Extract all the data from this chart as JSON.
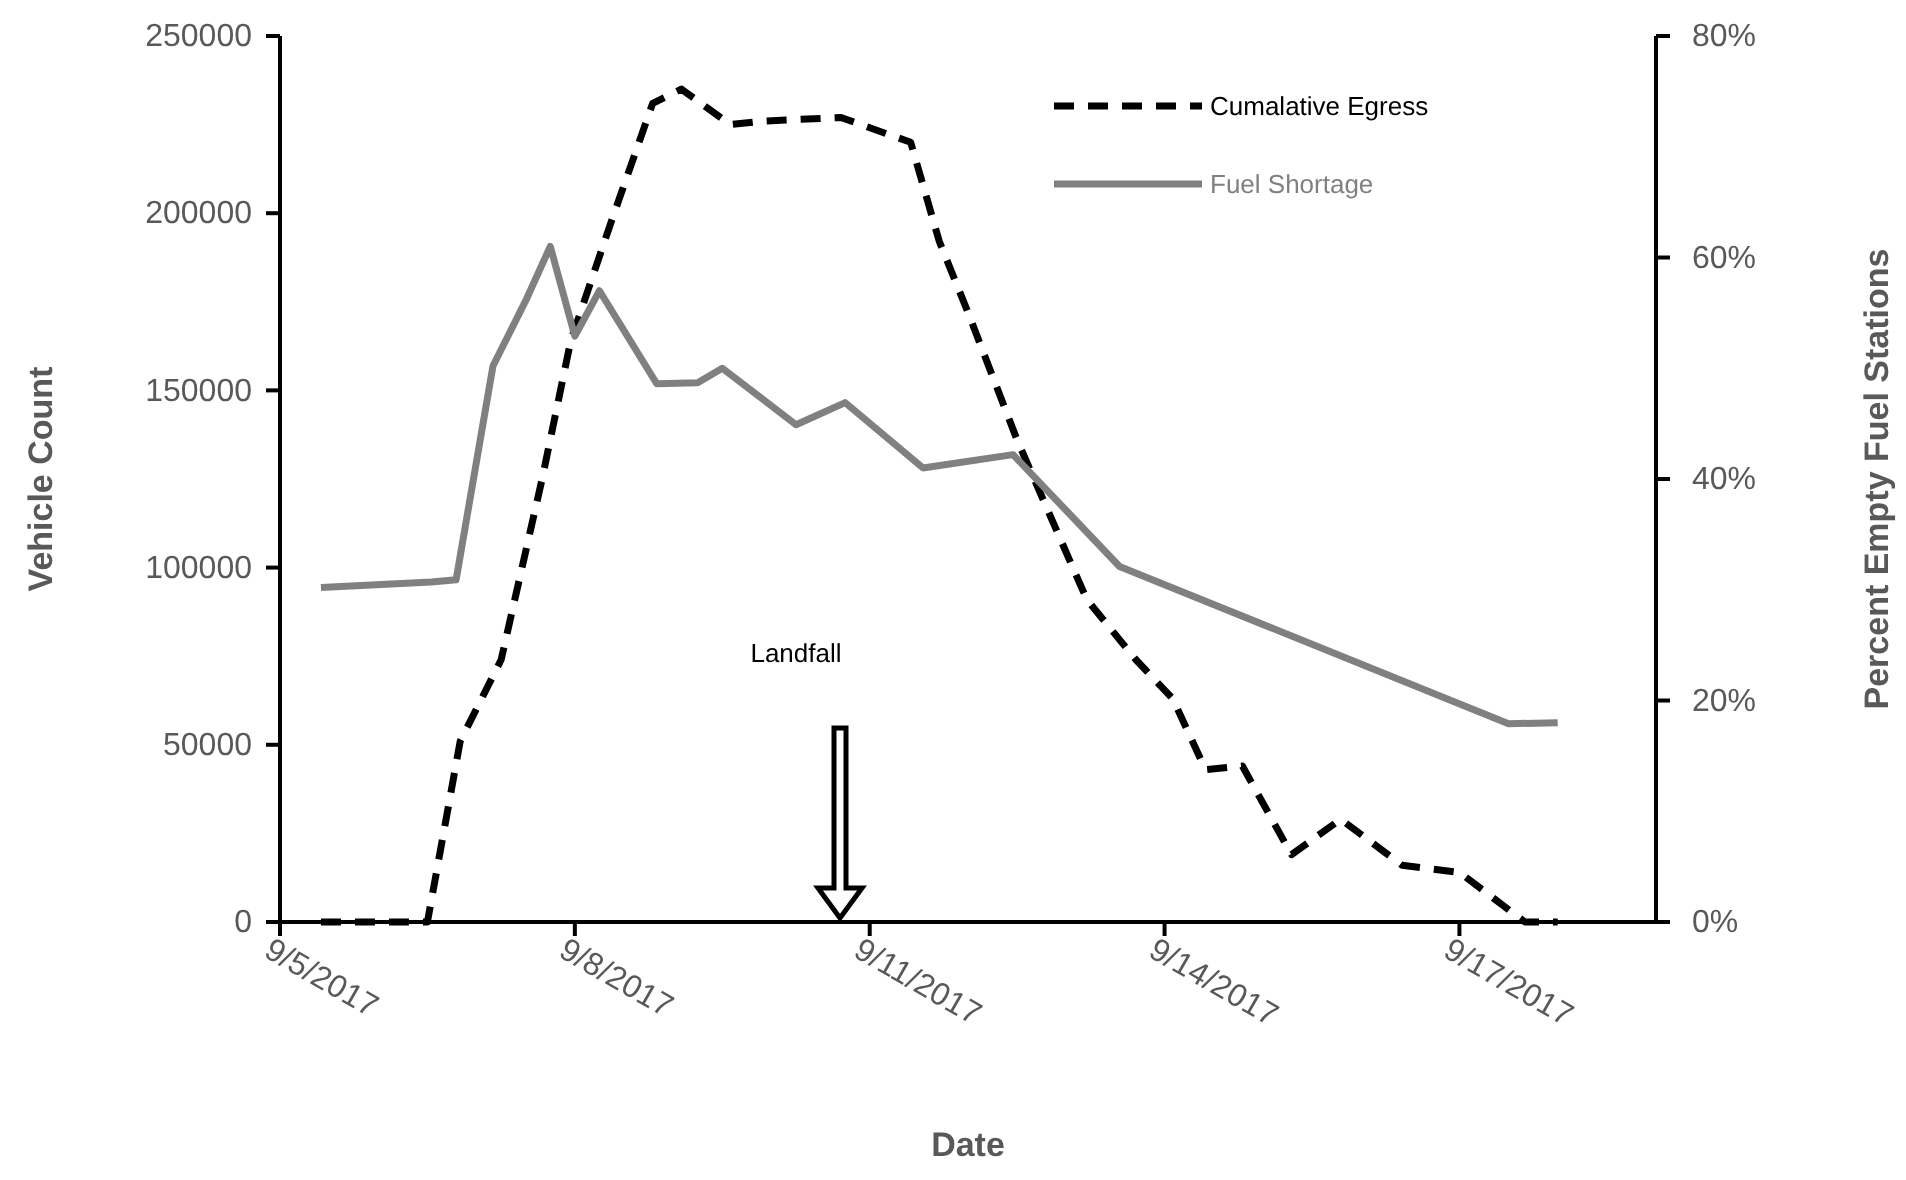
{
  "chart_data": {
    "type": "line",
    "xlabel": "Date",
    "ylabel": "Vehicle Count",
    "y2label": "Percent Empty Fuel Stations",
    "xlim": [
      "2017-09-05",
      "2017-09-19"
    ],
    "xticks": [
      {
        "value": "2017-09-05",
        "label": "9/5/2017"
      },
      {
        "value": "2017-09-08",
        "label": "9/8/2017"
      },
      {
        "value": "2017-09-11",
        "label": "9/11/2017"
      },
      {
        "value": "2017-09-14",
        "label": "9/14/2017"
      },
      {
        "value": "2017-09-17",
        "label": "9/17/2017"
      }
    ],
    "ylim": [
      0,
      250000
    ],
    "yticks": [
      0,
      50000,
      100000,
      150000,
      200000,
      250000
    ],
    "y2lim": [
      0,
      80
    ],
    "y2ticks": [
      {
        "value": 0,
        "label": "0%"
      },
      {
        "value": 20,
        "label": "20%"
      },
      {
        "value": 40,
        "label": "40%"
      },
      {
        "value": 60,
        "label": "60%"
      },
      {
        "value": 80,
        "label": "80%"
      }
    ],
    "legend": "top right",
    "grid": false,
    "series": [
      {
        "name": "Cumalative Egress",
        "color": "#000000",
        "line_style": "dashed",
        "x": [
          "2017-09-05T10:00",
          "2017-09-06T12:00",
          "2017-09-06T20:00",
          "2017-09-07T06:00",
          "2017-09-07T16:00",
          "2017-09-07T23:00",
          "2017-09-08T09:00",
          "2017-09-08T19:00",
          "2017-09-09T02:00",
          "2017-09-09T14:00",
          "2017-09-09T22:00",
          "2017-09-10T17:00",
          "2017-09-11T10:00",
          "2017-09-11T17:00",
          "2017-09-12T00:00",
          "2017-09-12T12:00",
          "2017-09-13T05:00",
          "2017-09-13T17:00",
          "2017-09-14T02:00",
          "2017-09-14T10:00",
          "2017-09-14T19:00",
          "2017-09-15T07:00",
          "2017-09-15T19:00",
          "2017-09-16T10:00",
          "2017-09-17T00:00",
          "2017-09-17T16:00",
          "2017-09-18T00:00"
        ],
        "values": [
          0,
          0,
          51000,
          74000,
          125000,
          164000,
          198000,
          231000,
          235000,
          225000,
          226000,
          227000,
          220000,
          192000,
          172000,
          136000,
          91000,
          74000,
          63000,
          43000,
          44000,
          19000,
          29000,
          16000,
          14000,
          0,
          0
        ]
      },
      {
        "name": "Fuel Shortage",
        "color": "#808080",
        "line_style": "solid",
        "axis": "y2",
        "x": [
          "2017-09-05T10:00",
          "2017-09-06T13:00",
          "2017-09-06T19:00",
          "2017-09-07T04:00",
          "2017-09-07T12:00",
          "2017-09-07T18:00",
          "2017-09-08T00:00",
          "2017-09-08T06:00",
          "2017-09-08T20:00",
          "2017-09-09T06:00",
          "2017-09-09T12:00",
          "2017-09-10T06:00",
          "2017-09-10T18:00",
          "2017-09-11T13:00",
          "2017-09-12T11:00",
          "2017-09-13T13:00",
          "2017-09-17T12:00",
          "2017-09-18T00:00"
        ],
        "values": [
          30.2,
          30.7,
          30.9,
          50.2,
          56.1,
          61.0,
          52.9,
          57.0,
          48.6,
          48.7,
          50.0,
          44.9,
          46.9,
          41.0,
          42.2,
          32.1,
          17.9,
          18.0
        ]
      }
    ],
    "annotations": [
      "Landfall"
    ]
  }
}
